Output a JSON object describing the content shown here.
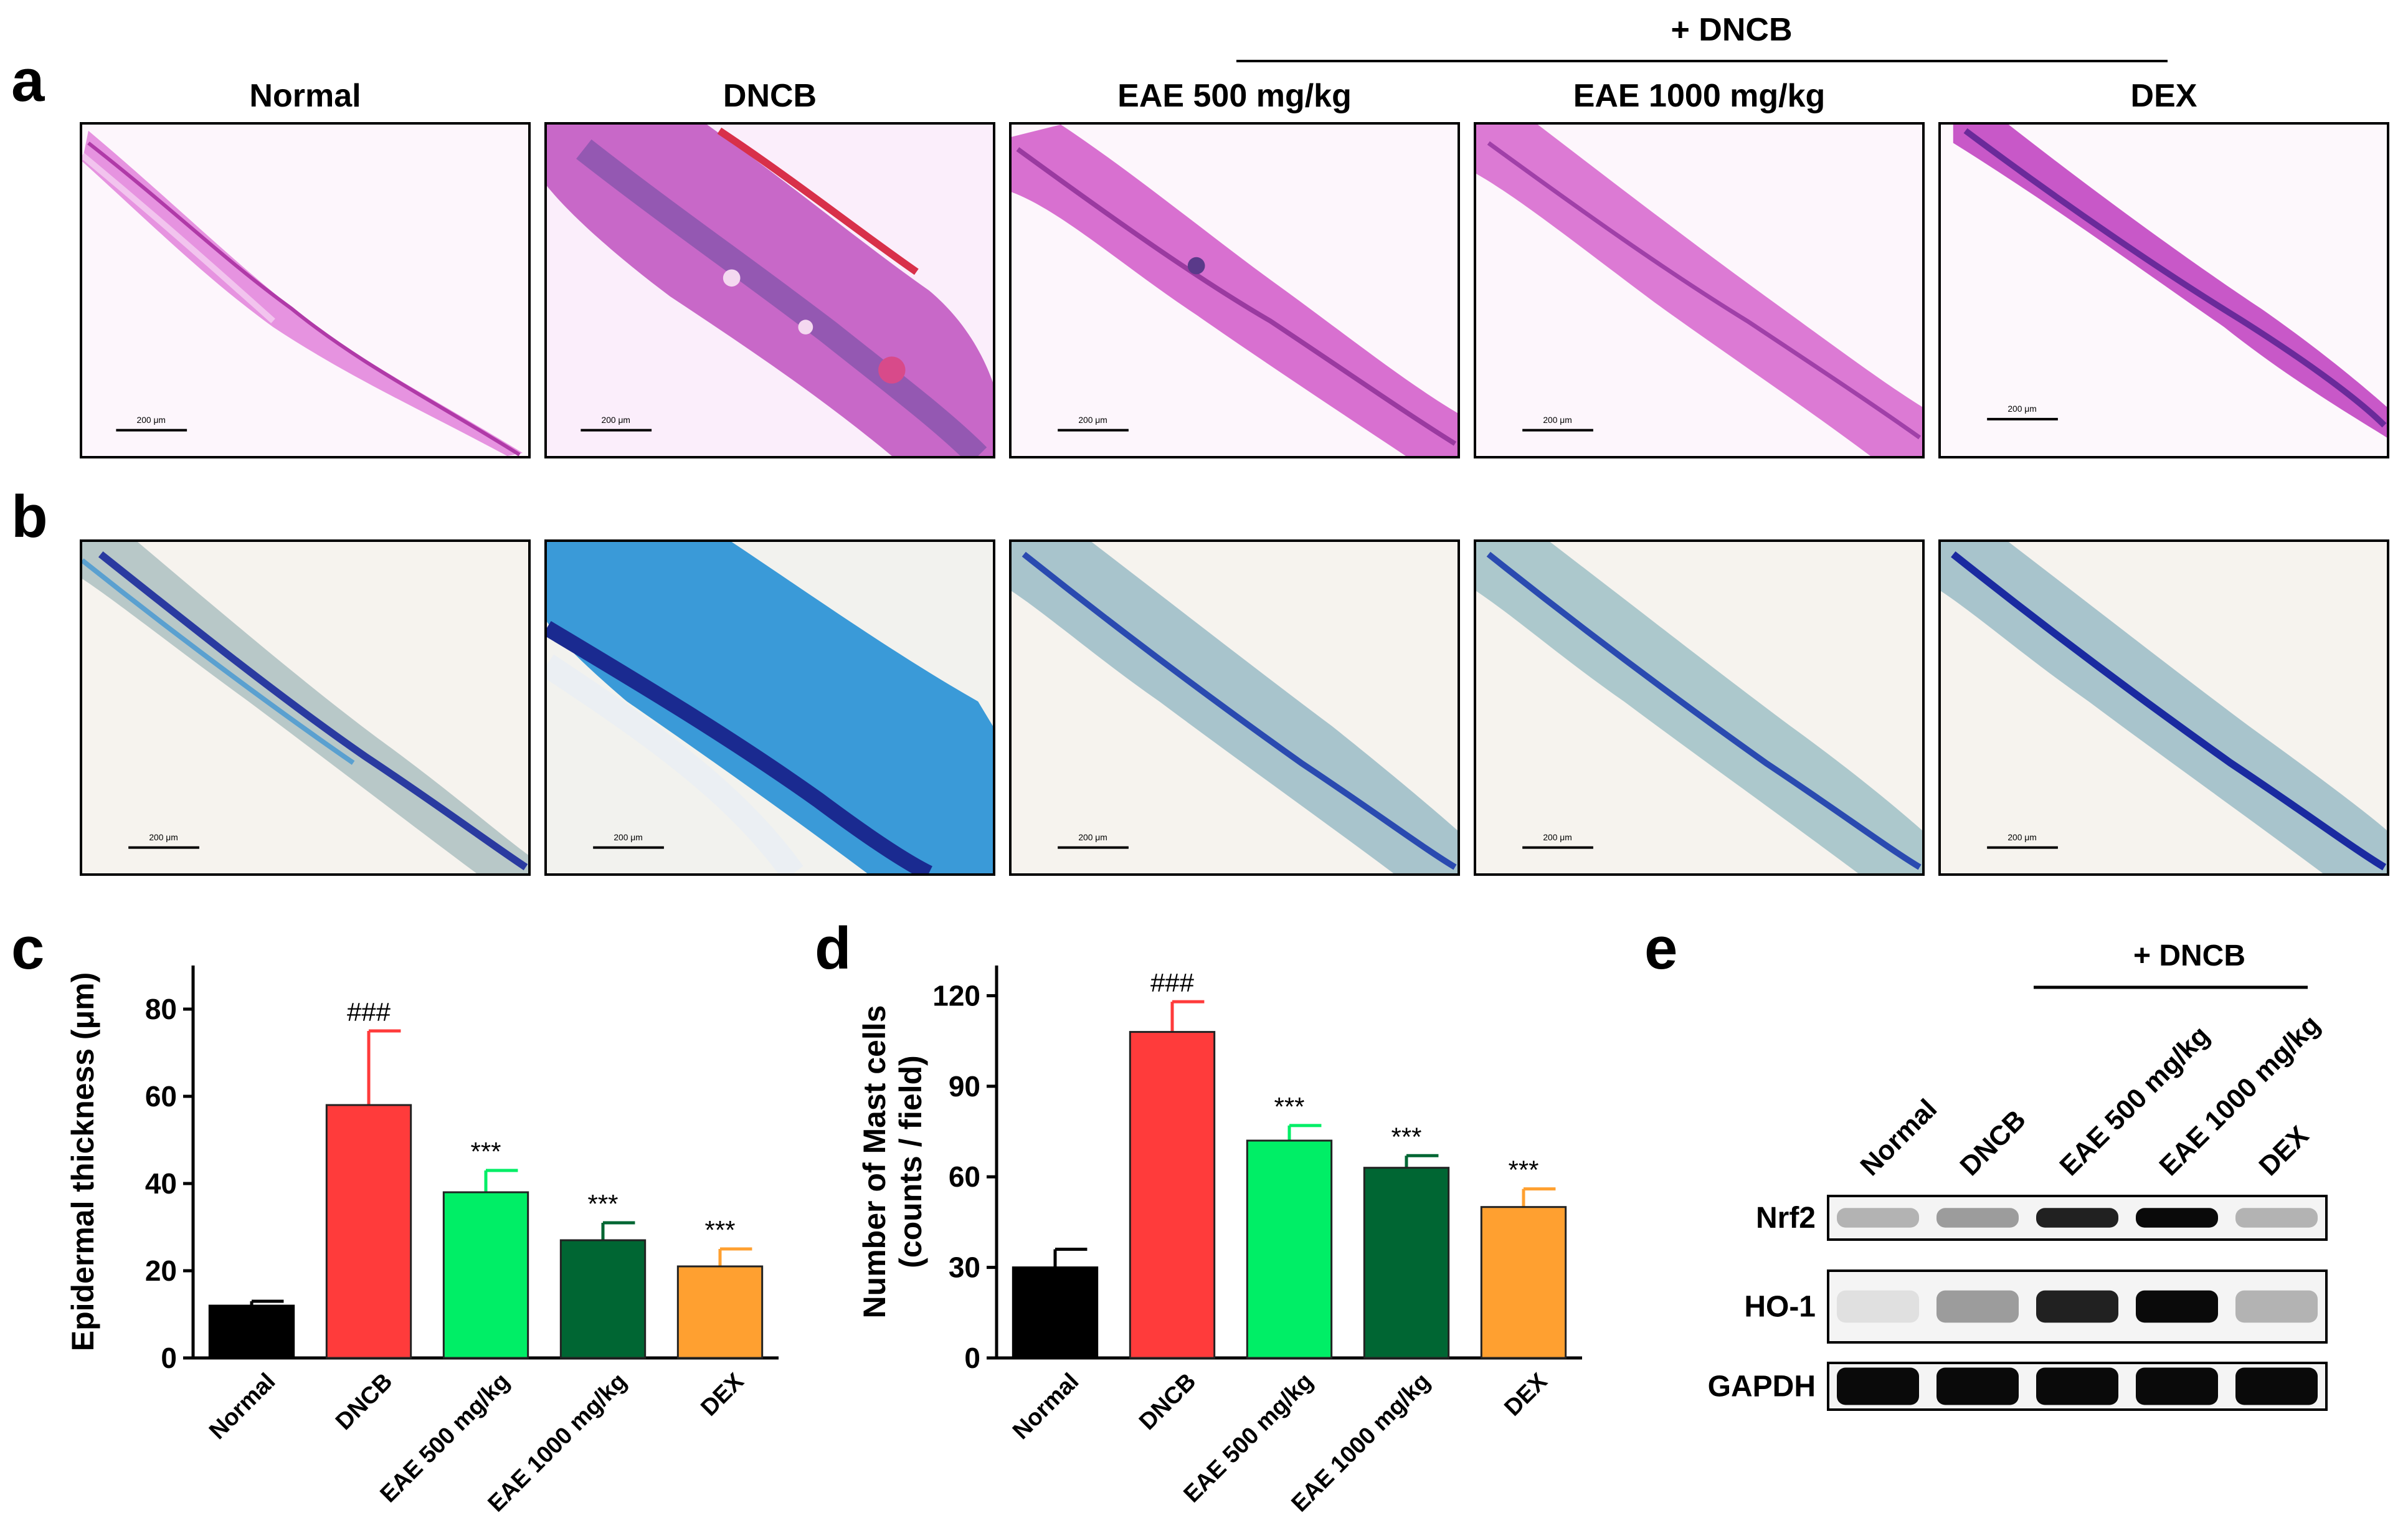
{
  "panel_letters": {
    "a": "a",
    "b": "b",
    "c": "c",
    "d": "d",
    "e": "e"
  },
  "top_group_label": "+ DNCB",
  "columns": [
    "Normal",
    "DNCB",
    "EAE 500 mg/kg",
    "EAE 1000 mg/kg",
    "DEX"
  ],
  "scale_bar_label": "200 μm",
  "colors": {
    "normal": "#000000",
    "dncb": "#ff3b3b",
    "eae500": "#00ee66",
    "eae1000": "#006633",
    "dex": "#ffa030",
    "he_tissue": "#d060c8",
    "tb_tissue": "#3a8ac8"
  },
  "chart_data": [
    {
      "type": "bar",
      "panel": "c",
      "categories": [
        "Normal",
        "DNCB",
        "EAE 500 mg/kg",
        "EAE 1000 mg/kg",
        "DEX"
      ],
      "values": [
        12,
        58,
        38,
        27,
        21
      ],
      "errors": [
        1,
        17,
        5,
        4,
        4
      ],
      "annotations": [
        "",
        "###",
        "***",
        "***",
        "***"
      ],
      "ylabel": "Epidermal thickness (μm)",
      "ylim": [
        0,
        90
      ],
      "yticks": [
        0,
        20,
        40,
        60,
        80
      ]
    },
    {
      "type": "bar",
      "panel": "d",
      "categories": [
        "Normal",
        "DNCB",
        "EAE 500 mg/kg",
        "EAE 1000 mg/kg",
        "DEX"
      ],
      "values": [
        30,
        108,
        72,
        63,
        50
      ],
      "errors": [
        6,
        10,
        5,
        4,
        6
      ],
      "annotations": [
        "",
        "###",
        "***",
        "***",
        "***"
      ],
      "ylabel_line1": "Number of Mast cells",
      "ylabel_line2": "(counts / field)",
      "ylim": [
        0,
        130
      ],
      "yticks": [
        0,
        30,
        60,
        90,
        120
      ]
    }
  ],
  "western_blot": {
    "group_label": "+ DNCB",
    "lanes": [
      "Normal",
      "DNCB",
      "EAE 500 mg/kg",
      "EAE 1000 mg/kg",
      "DEX"
    ],
    "proteins": [
      {
        "name": "Nrf2",
        "intensity": [
          0.25,
          0.35,
          0.9,
          1.0,
          0.25
        ]
      },
      {
        "name": "HO-1",
        "intensity": [
          0.05,
          0.35,
          0.9,
          1.0,
          0.25
        ]
      },
      {
        "name": "GAPDH",
        "intensity": [
          1.0,
          1.0,
          1.0,
          1.0,
          1.0
        ]
      }
    ]
  }
}
